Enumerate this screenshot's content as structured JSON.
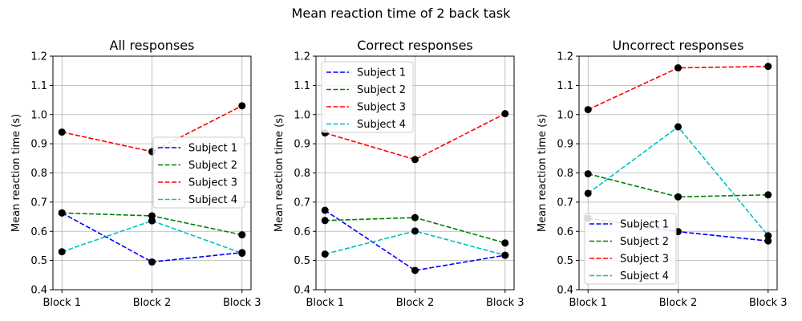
{
  "figure_title": "Mean reaction time of 2 back task",
  "colors": {
    "subject_1": "#0000ff",
    "subject_2": "#008000",
    "subject_3": "#ff0000",
    "subject_4": "#00bfbf",
    "marker": "#000000",
    "grid": "#b0b0b0"
  },
  "chart_data": [
    {
      "type": "line",
      "title": "All responses",
      "xlabel": "",
      "ylabel": "Mean reaction time (s)",
      "categories": [
        "Block 1",
        "Block 2",
        "Block 3"
      ],
      "ylim": [
        0.4,
        1.2
      ],
      "yticks": [
        "0.4",
        "0.5",
        "0.6",
        "0.7",
        "0.8",
        "0.9",
        "1.0",
        "1.1",
        "1.2"
      ],
      "grid": true,
      "legend": "center-right",
      "series": [
        {
          "name": "Subject 1",
          "values": [
            0.663,
            0.495,
            0.527
          ]
        },
        {
          "name": "Subject 2",
          "values": [
            0.663,
            0.653,
            0.588
          ]
        },
        {
          "name": "Subject 3",
          "values": [
            0.94,
            0.873,
            1.03
          ]
        },
        {
          "name": "Subject 4",
          "values": [
            0.53,
            0.636,
            0.525
          ]
        }
      ]
    },
    {
      "type": "line",
      "title": "Correct responses",
      "xlabel": "",
      "ylabel": "Mean reaction time (s)",
      "categories": [
        "Block 1",
        "Block 2",
        "Block 3"
      ],
      "ylim": [
        0.4,
        1.2
      ],
      "yticks": [
        "0.4",
        "0.5",
        "0.6",
        "0.7",
        "0.8",
        "0.9",
        "1.0",
        "1.1",
        "1.2"
      ],
      "grid": true,
      "legend": "upper-left",
      "series": [
        {
          "name": "Subject 1",
          "values": [
            0.672,
            0.466,
            0.518
          ]
        },
        {
          "name": "Subject 2",
          "values": [
            0.637,
            0.647,
            0.56
          ]
        },
        {
          "name": "Subject 3",
          "values": [
            0.937,
            0.846,
            1.003
          ]
        },
        {
          "name": "Subject 4",
          "values": [
            0.522,
            0.601,
            0.518
          ]
        }
      ]
    },
    {
      "type": "line",
      "title": "Uncorrect responses",
      "xlabel": "",
      "ylabel": "Mean reaction time (s)",
      "categories": [
        "Block 1",
        "Block 2",
        "Block 3"
      ],
      "ylim": [
        0.4,
        1.2
      ],
      "yticks": [
        "0.4",
        "0.5",
        "0.6",
        "0.7",
        "0.8",
        "0.9",
        "1.0",
        "1.1",
        "1.2"
      ],
      "grid": true,
      "legend": "lower-left",
      "series": [
        {
          "name": "Subject 1",
          "values": [
            0.645,
            0.599,
            0.567
          ]
        },
        {
          "name": "Subject 2",
          "values": [
            0.797,
            0.718,
            0.725
          ]
        },
        {
          "name": "Subject 3",
          "values": [
            1.017,
            1.16,
            1.165
          ]
        },
        {
          "name": "Subject 4",
          "values": [
            0.73,
            0.958,
            0.585
          ]
        }
      ]
    }
  ]
}
